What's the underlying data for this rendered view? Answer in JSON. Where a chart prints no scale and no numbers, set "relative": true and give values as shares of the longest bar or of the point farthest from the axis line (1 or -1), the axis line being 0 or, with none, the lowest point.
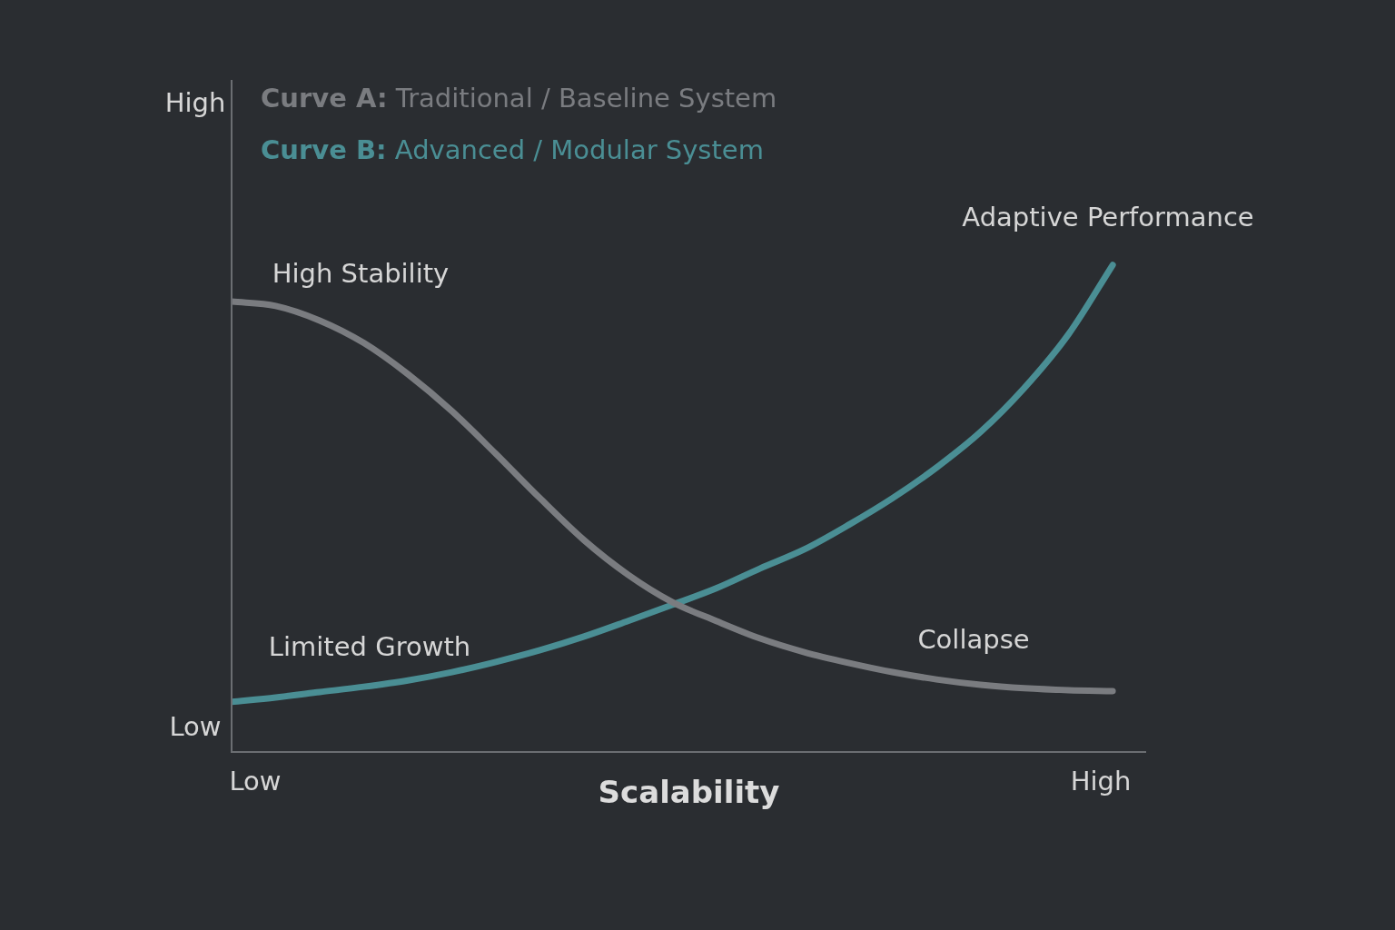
{
  "chart_data": {
    "type": "line",
    "relative": true,
    "xlabel": "Scalability",
    "categories": [
      null,
      null,
      null,
      null,
      null,
      null,
      null,
      null,
      null,
      null,
      null,
      null,
      null,
      null,
      null,
      null,
      null,
      null,
      null,
      null,
      null
    ],
    "legend": "top left",
    "line_style": "solid",
    "series": [
      {
        "name": "Curve A: Traditional / Baseline System",
        "color": "#7a7c80",
        "values": [
          0.925,
          0.916,
          0.886,
          0.84,
          0.776,
          0.7,
          0.612,
          0.521,
          0.435,
          0.364,
          0.308,
          0.269,
          0.233,
          0.205,
          0.183,
          0.164,
          0.149,
          0.138,
          0.131,
          0.127,
          0.125
        ]
      },
      {
        "name": "Curve B: Advanced / Modular System",
        "color": "#4a8e94",
        "values": [
          0.103,
          0.112,
          0.123,
          0.134,
          0.147,
          0.164,
          0.185,
          0.209,
          0.237,
          0.269,
          0.302,
          0.336,
          0.377,
          0.416,
          0.466,
          0.521,
          0.584,
          0.657,
          0.748,
          0.858,
          1
        ]
      }
    ],
    "annotations": [
      "High",
      "Low",
      "Low",
      "High",
      "High Stability",
      "Limited Growth",
      "Collapse",
      "Adaptive Performance"
    ]
  }
}
